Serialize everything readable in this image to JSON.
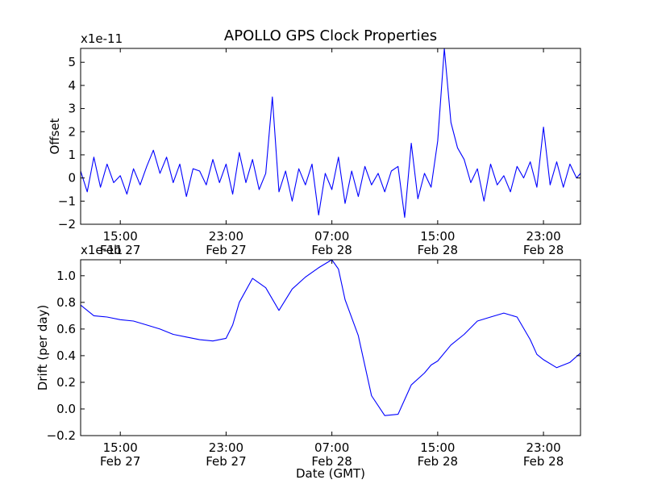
{
  "chart_data": [
    {
      "type": "line",
      "title": "APOLLO GPS Clock Properties",
      "xlabel": "",
      "ylabel": "Offset",
      "scale_label": "x1e-11",
      "ylim": [
        -2,
        5.6
      ],
      "yticks": [
        -2,
        -1,
        0,
        1,
        2,
        3,
        4,
        5
      ],
      "ytick_labels": [
        "−2",
        "−1",
        "0",
        "1",
        "2",
        "3",
        "4",
        "5"
      ],
      "xlim_hours": [
        12.0,
        49.8
      ],
      "xticks_hours": [
        15,
        23,
        31,
        39,
        47
      ],
      "xtick_labels": [
        [
          "15:00",
          "Feb 27"
        ],
        [
          "23:00",
          "Feb 27"
        ],
        [
          "07:00",
          "Feb 28"
        ],
        [
          "15:00",
          "Feb 28"
        ],
        [
          "23:00",
          "Feb 28"
        ]
      ],
      "line_color": "#0000ff",
      "series": [
        {
          "name": "Offset",
          "x": [
            12.0,
            12.5,
            13.0,
            13.5,
            14.0,
            14.5,
            15.0,
            15.5,
            16.0,
            16.5,
            17.0,
            17.5,
            18.0,
            18.5,
            19.0,
            19.5,
            20.0,
            20.5,
            21.0,
            21.5,
            22.0,
            22.5,
            23.0,
            23.5,
            24.0,
            24.5,
            25.0,
            25.5,
            26.0,
            26.5,
            27.0,
            27.5,
            28.0,
            28.5,
            29.0,
            29.5,
            30.0,
            30.5,
            31.0,
            31.5,
            32.0,
            32.5,
            33.0,
            33.5,
            34.0,
            34.5,
            35.0,
            35.5,
            36.0,
            36.5,
            37.0,
            37.5,
            38.0,
            38.5,
            39.0,
            39.5,
            40.0,
            40.5,
            41.0,
            41.5,
            42.0,
            42.5,
            43.0,
            43.5,
            44.0,
            44.5,
            45.0,
            45.5,
            46.0,
            46.5,
            47.0,
            47.5,
            48.0,
            48.5,
            49.0,
            49.5,
            49.8
          ],
          "y": [
            0.3,
            -0.6,
            0.9,
            -0.4,
            0.6,
            -0.2,
            0.1,
            -0.7,
            0.4,
            -0.3,
            0.5,
            1.2,
            0.2,
            0.9,
            -0.2,
            0.6,
            -0.8,
            0.4,
            0.3,
            -0.3,
            0.8,
            -0.2,
            0.6,
            -0.7,
            1.1,
            -0.2,
            0.8,
            -0.5,
            0.2,
            3.5,
            -0.6,
            0.3,
            -1.0,
            0.4,
            -0.3,
            0.6,
            -1.6,
            0.2,
            -0.5,
            0.9,
            -1.1,
            0.3,
            -0.8,
            0.5,
            -0.3,
            0.2,
            -0.6,
            0.3,
            0.5,
            -1.7,
            1.5,
            -0.9,
            0.2,
            -0.4,
            1.6,
            5.6,
            2.4,
            1.3,
            0.8,
            -0.2,
            0.4,
            -1.0,
            0.6,
            -0.3,
            0.1,
            -0.6,
            0.5,
            0.0,
            0.7,
            -0.4,
            2.2,
            -0.3,
            0.7,
            -0.4,
            0.6,
            0.0,
            0.2
          ]
        }
      ]
    },
    {
      "type": "line",
      "title": "",
      "xlabel": "Date (GMT)",
      "ylabel": "Drift (per day)",
      "scale_label": "x1e-11",
      "ylim": [
        -0.2,
        1.12
      ],
      "yticks": [
        -0.2,
        0.0,
        0.2,
        0.4,
        0.6,
        0.8,
        1.0
      ],
      "ytick_labels": [
        "−0.2",
        "0.0",
        "0.2",
        "0.4",
        "0.6",
        "0.8",
        "1.0"
      ],
      "xlim_hours": [
        12.0,
        49.8
      ],
      "xticks_hours": [
        15,
        23,
        31,
        39,
        47
      ],
      "xtick_labels": [
        [
          "15:00",
          "Feb 27"
        ],
        [
          "23:00",
          "Feb 27"
        ],
        [
          "07:00",
          "Feb 28"
        ],
        [
          "15:00",
          "Feb 28"
        ],
        [
          "23:00",
          "Feb 28"
        ]
      ],
      "line_color": "#0000ff",
      "series": [
        {
          "name": "Drift",
          "x": [
            12.0,
            13.0,
            14.0,
            15.0,
            16.0,
            17.0,
            18.0,
            19.0,
            20.0,
            21.0,
            22.0,
            23.0,
            23.5,
            24.0,
            25.0,
            26.0,
            27.0,
            28.0,
            29.0,
            30.0,
            31.0,
            31.5,
            32.0,
            33.0,
            34.0,
            35.0,
            36.0,
            37.0,
            38.0,
            38.5,
            39.0,
            40.0,
            41.0,
            42.0,
            43.0,
            44.0,
            45.0,
            46.0,
            46.5,
            47.0,
            48.0,
            49.0,
            49.8
          ],
          "y": [
            0.78,
            0.7,
            0.69,
            0.67,
            0.66,
            0.63,
            0.6,
            0.56,
            0.54,
            0.52,
            0.51,
            0.53,
            0.63,
            0.8,
            0.98,
            0.91,
            0.74,
            0.9,
            0.99,
            1.06,
            1.12,
            1.05,
            0.82,
            0.55,
            0.1,
            -0.05,
            -0.04,
            0.18,
            0.27,
            0.33,
            0.36,
            0.48,
            0.56,
            0.66,
            0.69,
            0.72,
            0.69,
            0.52,
            0.41,
            0.37,
            0.31,
            0.35,
            0.42
          ]
        }
      ]
    }
  ]
}
